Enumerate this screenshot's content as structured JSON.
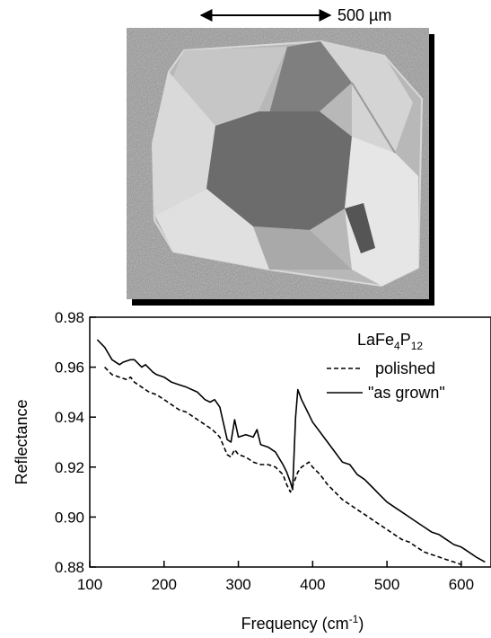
{
  "photo": {
    "scale_bar_label": "500 µm"
  },
  "chart_data": {
    "type": "line",
    "xlabel_main": "Frequency (cm",
    "xlabel_sup": "-1",
    "xlabel_end": ")",
    "ylabel": "Reflectance",
    "xlim": [
      100,
      640
    ],
    "ylim": [
      0.88,
      0.98
    ],
    "x_ticks": [
      100,
      200,
      300,
      400,
      500,
      600
    ],
    "x_tick_labels": [
      "100",
      "200",
      "300",
      "400",
      "500",
      "600"
    ],
    "y_ticks": [
      0.88,
      0.9,
      0.92,
      0.94,
      0.96,
      0.98
    ],
    "y_tick_labels": [
      "0.88",
      "0.90",
      "0.92",
      "0.94",
      "0.96",
      "0.98"
    ],
    "legend_title": {
      "base": "LaFe",
      "sub1": "4",
      "mid": "P",
      "sub2": "12"
    },
    "series": [
      {
        "name": "\"as grown\"",
        "style": "solid",
        "points": [
          [
            110,
            0.971
          ],
          [
            120,
            0.968
          ],
          [
            130,
            0.963
          ],
          [
            140,
            0.961
          ],
          [
            145,
            0.962
          ],
          [
            155,
            0.963
          ],
          [
            160,
            0.963
          ],
          [
            170,
            0.96
          ],
          [
            175,
            0.961
          ],
          [
            185,
            0.958
          ],
          [
            190,
            0.957
          ],
          [
            200,
            0.956
          ],
          [
            210,
            0.954
          ],
          [
            220,
            0.953
          ],
          [
            230,
            0.952
          ],
          [
            245,
            0.95
          ],
          [
            255,
            0.947
          ],
          [
            262,
            0.946
          ],
          [
            268,
            0.947
          ],
          [
            275,
            0.944
          ],
          [
            285,
            0.931
          ],
          [
            290,
            0.93
          ],
          [
            295,
            0.939
          ],
          [
            300,
            0.932
          ],
          [
            310,
            0.933
          ],
          [
            320,
            0.932
          ],
          [
            325,
            0.935
          ],
          [
            330,
            0.929
          ],
          [
            340,
            0.928
          ],
          [
            350,
            0.926
          ],
          [
            360,
            0.921
          ],
          [
            365,
            0.918
          ],
          [
            370,
            0.914
          ],
          [
            373,
            0.911
          ],
          [
            377,
            0.94
          ],
          [
            380,
            0.951
          ],
          [
            385,
            0.947
          ],
          [
            390,
            0.944
          ],
          [
            400,
            0.938
          ],
          [
            410,
            0.934
          ],
          [
            420,
            0.93
          ],
          [
            430,
            0.926
          ],
          [
            440,
            0.922
          ],
          [
            450,
            0.921
          ],
          [
            460,
            0.917
          ],
          [
            470,
            0.915
          ],
          [
            480,
            0.912
          ],
          [
            490,
            0.909
          ],
          [
            500,
            0.906
          ],
          [
            510,
            0.904
          ],
          [
            520,
            0.902
          ],
          [
            530,
            0.9
          ],
          [
            540,
            0.898
          ],
          [
            550,
            0.896
          ],
          [
            560,
            0.894
          ],
          [
            570,
            0.893
          ],
          [
            580,
            0.891
          ],
          [
            590,
            0.889
          ],
          [
            600,
            0.888
          ],
          [
            610,
            0.886
          ],
          [
            620,
            0.884
          ],
          [
            632,
            0.882
          ]
        ]
      },
      {
        "name": "polished",
        "style": "dashed",
        "points": [
          [
            120,
            0.96
          ],
          [
            130,
            0.957
          ],
          [
            140,
            0.956
          ],
          [
            150,
            0.955
          ],
          [
            155,
            0.956
          ],
          [
            160,
            0.954
          ],
          [
            170,
            0.952
          ],
          [
            180,
            0.95
          ],
          [
            190,
            0.949
          ],
          [
            200,
            0.947
          ],
          [
            210,
            0.945
          ],
          [
            220,
            0.943
          ],
          [
            230,
            0.942
          ],
          [
            245,
            0.939
          ],
          [
            255,
            0.937
          ],
          [
            265,
            0.935
          ],
          [
            275,
            0.932
          ],
          [
            285,
            0.925
          ],
          [
            290,
            0.924
          ],
          [
            295,
            0.927
          ],
          [
            300,
            0.925
          ],
          [
            310,
            0.924
          ],
          [
            320,
            0.922
          ],
          [
            330,
            0.921
          ],
          [
            340,
            0.921
          ],
          [
            350,
            0.92
          ],
          [
            360,
            0.917
          ],
          [
            365,
            0.913
          ],
          [
            370,
            0.91
          ],
          [
            375,
            0.914
          ],
          [
            380,
            0.918
          ],
          [
            385,
            0.92
          ],
          [
            390,
            0.921
          ],
          [
            395,
            0.922
          ],
          [
            400,
            0.92
          ],
          [
            410,
            0.917
          ],
          [
            420,
            0.913
          ],
          [
            430,
            0.91
          ],
          [
            440,
            0.907
          ],
          [
            450,
            0.905
          ],
          [
            460,
            0.903
          ],
          [
            470,
            0.901
          ],
          [
            480,
            0.899
          ],
          [
            490,
            0.897
          ],
          [
            500,
            0.895
          ],
          [
            510,
            0.893
          ],
          [
            520,
            0.891
          ],
          [
            530,
            0.89
          ],
          [
            540,
            0.888
          ],
          [
            550,
            0.886
          ],
          [
            560,
            0.885
          ],
          [
            570,
            0.884
          ],
          [
            580,
            0.883
          ],
          [
            590,
            0.882
          ],
          [
            600,
            0.881
          ]
        ]
      }
    ]
  }
}
